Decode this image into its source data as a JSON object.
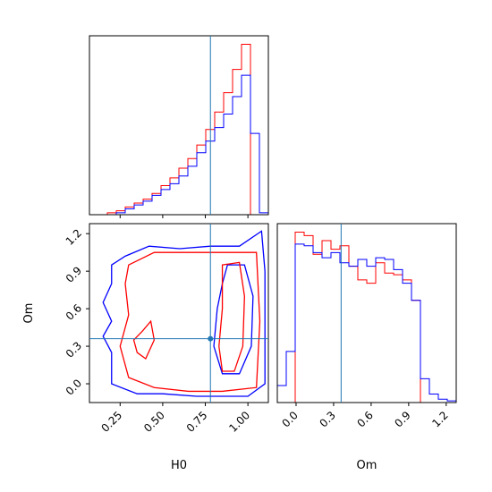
{
  "colors": {
    "series_a": "#ff0000",
    "series_b": "#0000ff",
    "truth": "#1f77b4"
  },
  "chart_data": {
    "type": "corner",
    "parameters": [
      "H0",
      "Om"
    ],
    "truth": {
      "H0": 0.78,
      "Om": 0.36
    },
    "panels": [
      {
        "id": "H0-marginal",
        "type": "histogram",
        "xlim": [
          0.07,
          1.12
        ],
        "bins": [
          0.07,
          0.1225,
          0.175,
          0.2275,
          0.28,
          0.3325,
          0.385,
          0.4375,
          0.49,
          0.5425,
          0.595,
          0.6475,
          0.7,
          0.7525,
          0.805,
          0.8575,
          0.91,
          0.9625,
          1.015,
          1.0675,
          1.12
        ],
        "series": [
          {
            "name": "red",
            "counts": [
              0,
              0,
              0.01,
              0.02,
              0.04,
              0.06,
              0.08,
              0.11,
              0.15,
              0.19,
              0.24,
              0.29,
              0.36,
              0.44,
              0.53,
              0.63,
              0.75,
              0.88,
              0.0,
              0.0
            ]
          },
          {
            "name": "blue",
            "counts": [
              0,
              0,
              0,
              0.01,
              0.03,
              0.05,
              0.07,
              0.1,
              0.13,
              0.16,
              0.2,
              0.25,
              0.32,
              0.38,
              0.45,
              0.52,
              0.61,
              0.72,
              0.42,
              0.01
            ]
          }
        ]
      },
      {
        "id": "H0-Om-joint",
        "type": "contour",
        "xlim": [
          0.07,
          1.12
        ],
        "ylim": [
          -0.15,
          1.28
        ],
        "xticks": [
          "0.25",
          "0.50",
          "0.75",
          "1.00"
        ],
        "yticks": [
          "0.0",
          "0.3",
          "0.6",
          "0.9",
          "1.2"
        ],
        "xlabel": "H0",
        "ylabel": "Om",
        "contours": [
          {
            "series": "blue",
            "points": [
              [
                0.2,
                0.95
              ],
              [
                0.28,
                1.02
              ],
              [
                0.42,
                1.1
              ],
              [
                0.6,
                1.08
              ],
              [
                0.78,
                1.1
              ],
              [
                0.95,
                1.1
              ],
              [
                1.08,
                1.22
              ],
              [
                1.1,
                0.9
              ],
              [
                1.1,
                0.0
              ],
              [
                1.0,
                -0.1
              ],
              [
                0.7,
                -0.1
              ],
              [
                0.5,
                -0.08
              ],
              [
                0.35,
                -0.08
              ],
              [
                0.2,
                0.0
              ],
              [
                0.2,
                0.25
              ],
              [
                0.15,
                0.38
              ],
              [
                0.2,
                0.5
              ],
              [
                0.15,
                0.65
              ],
              [
                0.2,
                0.8
              ]
            ]
          },
          {
            "series": "blue",
            "points": [
              [
                0.88,
                0.95
              ],
              [
                0.98,
                0.95
              ],
              [
                1.03,
                0.7
              ],
              [
                1.02,
                0.3
              ],
              [
                0.95,
                0.08
              ],
              [
                0.85,
                0.08
              ],
              [
                0.8,
                0.3
              ],
              [
                0.82,
                0.6
              ],
              [
                0.85,
                0.8
              ]
            ]
          },
          {
            "series": "red",
            "points": [
              [
                0.3,
                0.95
              ],
              [
                0.45,
                1.05
              ],
              [
                0.65,
                1.05
              ],
              [
                0.85,
                1.05
              ],
              [
                1.05,
                1.05
              ],
              [
                1.07,
                0.5
              ],
              [
                1.05,
                -0.03
              ],
              [
                0.85,
                -0.06
              ],
              [
                0.65,
                -0.06
              ],
              [
                0.45,
                -0.03
              ],
              [
                0.3,
                0.05
              ],
              [
                0.25,
                0.3
              ],
              [
                0.3,
                0.55
              ],
              [
                0.28,
                0.8
              ]
            ]
          },
          {
            "series": "red",
            "points": [
              [
                0.85,
                0.95
              ],
              [
                0.95,
                0.97
              ],
              [
                0.98,
                0.7
              ],
              [
                0.97,
                0.3
              ],
              [
                0.92,
                0.1
              ],
              [
                0.85,
                0.1
              ],
              [
                0.83,
                0.3
              ],
              [
                0.85,
                0.6
              ]
            ]
          },
          {
            "series": "red",
            "points": [
              [
                0.38,
                0.42
              ],
              [
                0.43,
                0.5
              ],
              [
                0.45,
                0.35
              ],
              [
                0.4,
                0.2
              ],
              [
                0.35,
                0.25
              ],
              [
                0.33,
                0.35
              ]
            ]
          }
        ]
      },
      {
        "id": "Om-marginal",
        "type": "histogram",
        "xlim": [
          -0.15,
          1.28
        ],
        "xticks": [
          "0.0",
          "0.3",
          "0.6",
          "0.9",
          "1.2"
        ],
        "xlabel": "Om",
        "bins": [
          -0.15,
          -0.0785,
          -0.007,
          0.0645,
          0.136,
          0.2075,
          0.279,
          0.3505,
          0.422,
          0.4935,
          0.565,
          0.6365,
          0.708,
          0.7795,
          0.851,
          0.9225,
          0.994,
          1.0655,
          1.137,
          1.2085,
          1.28
        ],
        "series": [
          {
            "name": "red",
            "counts": [
              0,
              0,
              1.0,
              0.98,
              0.87,
              0.95,
              0.9,
              0.92,
              0.8,
              0.72,
              0.7,
              0.82,
              0.76,
              0.75,
              0.72,
              0.6,
              0.0,
              0,
              0,
              0
            ]
          },
          {
            "name": "blue",
            "counts": [
              0.1,
              0.3,
              0.93,
              0.92,
              0.88,
              0.85,
              0.88,
              0.82,
              0.8,
              0.84,
              0.8,
              0.85,
              0.84,
              0.78,
              0.7,
              0.6,
              0.14,
              0.05,
              0.02,
              0.01
            ]
          }
        ]
      }
    ]
  }
}
